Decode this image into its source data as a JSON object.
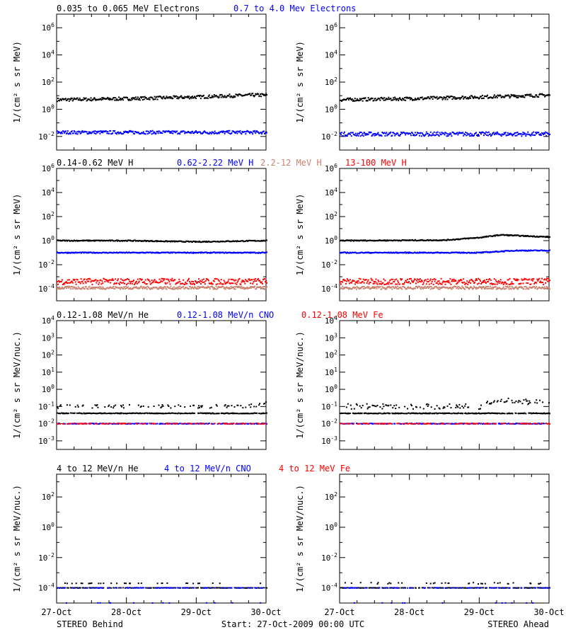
{
  "footer": {
    "left": "STEREO Behind",
    "center": "Start: 27-Oct-2009 00:00 UTC",
    "right": "STEREO Ahead"
  },
  "colors": {
    "black": "#000000",
    "blue": "#0000ff",
    "salmon": "#c8826e",
    "red": "#ff0000"
  },
  "chart_data": [
    {
      "type": "scatter",
      "panel": "electrons",
      "ylabel": "1/(cm² s sr MeV)",
      "yscale": "log",
      "ylim_exp": [
        -3,
        7
      ],
      "ytick_exponents": [
        -2,
        0,
        2,
        4,
        6
      ],
      "legend": [
        {
          "text": "0.035 to 0.065 MeV Electrons",
          "color": "#000000"
        },
        {
          "text": "0.7 to 4.0 Mev Electrons",
          "color": "#0000ff"
        }
      ],
      "x_ticks": [
        "27-Oct",
        "28-Oct",
        "29-Oct",
        "30-Oct"
      ],
      "behind": [
        {
          "color": "#000000",
          "trend": [
            [
              0,
              5
            ],
            [
              1,
              6
            ],
            [
              2,
              8
            ],
            [
              2.8,
              11
            ],
            [
              3,
              11
            ]
          ],
          "spread": 0.12
        },
        {
          "color": "#0000ff",
          "trend": [
            [
              0,
              0.02
            ],
            [
              3,
              0.02
            ]
          ],
          "spread": 0.12
        }
      ],
      "ahead": [
        {
          "color": "#000000",
          "trend": [
            [
              0,
              5
            ],
            [
              1,
              6
            ],
            [
              2,
              8
            ],
            [
              3,
              11
            ]
          ],
          "spread": 0.12
        },
        {
          "color": "#0000ff",
          "trend": [
            [
              0,
              0.015
            ],
            [
              3,
              0.015
            ]
          ],
          "spread": 0.15
        }
      ]
    },
    {
      "type": "scatter",
      "panel": "protons",
      "ylabel": "1/(cm² s sr MeV)",
      "yscale": "log",
      "ylim_exp": [
        -5,
        6
      ],
      "ytick_exponents": [
        -4,
        -2,
        0,
        2,
        4,
        6
      ],
      "legend": [
        {
          "text": "0.14-0.62 MeV H",
          "color": "#000000"
        },
        {
          "text": "0.62-2.22 MeV H",
          "color": "#0000ff"
        },
        {
          "text": "2.2-12 MeV H",
          "color": "#c8826e"
        },
        {
          "text": "13-100 MeV H",
          "color": "#ff0000"
        }
      ],
      "x_ticks": [
        "27-Oct",
        "28-Oct",
        "29-Oct",
        "30-Oct"
      ],
      "behind": [
        {
          "color": "#000000",
          "trend": [
            [
              0,
              1
            ],
            [
              1,
              1
            ],
            [
              2,
              0.8
            ],
            [
              3,
              1
            ]
          ],
          "spread": 0.04
        },
        {
          "color": "#0000ff",
          "trend": [
            [
              0,
              0.1
            ],
            [
              3,
              0.1
            ]
          ],
          "spread": 0.04
        },
        {
          "color": "#ff0000",
          "trend": [
            [
              0,
              0.0004
            ],
            [
              3,
              0.0004
            ]
          ],
          "spread": 0.25
        },
        {
          "color": "#c8826e",
          "trend": [
            [
              0,
              0.00012
            ],
            [
              3,
              0.00012
            ]
          ],
          "spread": 0.12
        }
      ],
      "ahead": [
        {
          "color": "#000000",
          "trend": [
            [
              0,
              1
            ],
            [
              1.5,
              1.1
            ],
            [
              2,
              1.8
            ],
            [
              2.3,
              3
            ],
            [
              2.6,
              2.5
            ],
            [
              3,
              2
            ]
          ],
          "spread": 0.04
        },
        {
          "color": "#0000ff",
          "trend": [
            [
              0,
              0.1
            ],
            [
              2,
              0.1
            ],
            [
              2.5,
              0.15
            ],
            [
              3,
              0.15
            ]
          ],
          "spread": 0.04
        },
        {
          "color": "#ff0000",
          "trend": [
            [
              0,
              0.0004
            ],
            [
              3,
              0.0004
            ]
          ],
          "spread": 0.25
        },
        {
          "color": "#c8826e",
          "trend": [
            [
              0,
              0.00012
            ],
            [
              3,
              0.00012
            ]
          ],
          "spread": 0.12
        }
      ]
    },
    {
      "type": "scatter",
      "panel": "heavy-ions-low",
      "ylabel": "1/(cm² s sr MeV/nuc.)",
      "yscale": "log",
      "ylim_exp": [
        -3.5,
        4
      ],
      "ytick_exponents": [
        -3,
        -2,
        -1,
        0,
        1,
        2,
        3,
        4
      ],
      "legend": [
        {
          "text": "0.12-1.08 MeV/n He",
          "color": "#000000"
        },
        {
          "text": "0.12-1.08 MeV/n CNO",
          "color": "#0000ff"
        },
        {
          "text": "0.12-1.08 MeV Fe",
          "color": "#ff0000"
        }
      ],
      "x_ticks": [
        "27-Oct",
        "28-Oct",
        "29-Oct",
        "30-Oct"
      ],
      "behind": [
        {
          "color": "#000000",
          "trend": [
            [
              0,
              0.04
            ],
            [
              3,
              0.04
            ]
          ],
          "spread": 0.02,
          "sparse": 0.8
        },
        {
          "color": "#000000",
          "trend": [
            [
              0,
              0.1
            ],
            [
              2.7,
              0.1
            ],
            [
              3,
              0.15
            ]
          ],
          "spread": 0.1,
          "sparse": 0.3
        },
        {
          "color": "#0000ff",
          "trend": [
            [
              0,
              0.01
            ],
            [
              3,
              0.01
            ]
          ],
          "spread": 0.02,
          "sparse": 0.7
        },
        {
          "color": "#ff0000",
          "trend": [
            [
              0,
              0.01
            ],
            [
              3,
              0.01
            ]
          ],
          "spread": 0.02,
          "sparse": 0.4
        }
      ],
      "ahead": [
        {
          "color": "#000000",
          "trend": [
            [
              0,
              0.04
            ],
            [
              3,
              0.04
            ]
          ],
          "spread": 0.02,
          "sparse": 0.8
        },
        {
          "color": "#000000",
          "trend": [
            [
              0,
              0.1
            ],
            [
              2,
              0.1
            ],
            [
              2.3,
              0.25
            ],
            [
              3,
              0.15
            ]
          ],
          "spread": 0.15,
          "sparse": 0.35
        },
        {
          "color": "#0000ff",
          "trend": [
            [
              0,
              0.01
            ],
            [
              3,
              0.01
            ]
          ],
          "spread": 0.02,
          "sparse": 0.7
        },
        {
          "color": "#ff0000",
          "trend": [
            [
              0,
              0.01
            ],
            [
              3,
              0.01
            ]
          ],
          "spread": 0.02,
          "sparse": 0.4
        }
      ]
    },
    {
      "type": "scatter",
      "panel": "heavy-ions-high",
      "ylabel": "1/(cm² s sr MeV/nuc.)",
      "yscale": "log",
      "ylim_exp": [
        -5,
        3.5
      ],
      "ytick_exponents": [
        -4,
        -2,
        0,
        2
      ],
      "legend": [
        {
          "text": "4 to 12 MeV/n He",
          "color": "#000000"
        },
        {
          "text": "4 to 12 MeV/n CNO",
          "color": "#0000ff"
        },
        {
          "text": "4 to 12 MeV Fe",
          "color": "#ff0000"
        }
      ],
      "x_ticks": [
        "27-Oct",
        "28-Oct",
        "29-Oct",
        "30-Oct"
      ],
      "behind": [
        {
          "color": "#000000",
          "trend": [
            [
              0,
              0.0001
            ],
            [
              3,
              0.0001
            ]
          ],
          "spread": 0.01,
          "sparse": 0.6
        },
        {
          "color": "#0000ff",
          "trend": [
            [
              0,
              0.0001
            ],
            [
              3,
              0.0001
            ]
          ],
          "spread": 0.01,
          "sparse": 0.3
        },
        {
          "color": "#000000",
          "trend": [
            [
              0,
              0.0002
            ],
            [
              3,
              0.0002
            ]
          ],
          "spread": 0.01,
          "sparse": 0.12
        },
        {
          "color": "#0000ff",
          "trend": [
            [
              0,
              1e-05
            ],
            [
              3,
              1e-05
            ]
          ],
          "spread": 0.01,
          "sparse": 0.1
        }
      ],
      "ahead": [
        {
          "color": "#000000",
          "trend": [
            [
              0,
              0.0001
            ],
            [
              3,
              0.0001
            ]
          ],
          "spread": 0.01,
          "sparse": 0.6
        },
        {
          "color": "#0000ff",
          "trend": [
            [
              0,
              0.0001
            ],
            [
              3,
              0.0001
            ]
          ],
          "spread": 0.01,
          "sparse": 0.3
        },
        {
          "color": "#000000",
          "trend": [
            [
              0,
              0.0002
            ],
            [
              3,
              0.0002
            ]
          ],
          "spread": 0.05,
          "sparse": 0.12
        },
        {
          "color": "#0000ff",
          "trend": [
            [
              0,
              1e-05
            ],
            [
              3,
              1e-05
            ]
          ],
          "spread": 0.01,
          "sparse": 0.1
        }
      ]
    }
  ]
}
